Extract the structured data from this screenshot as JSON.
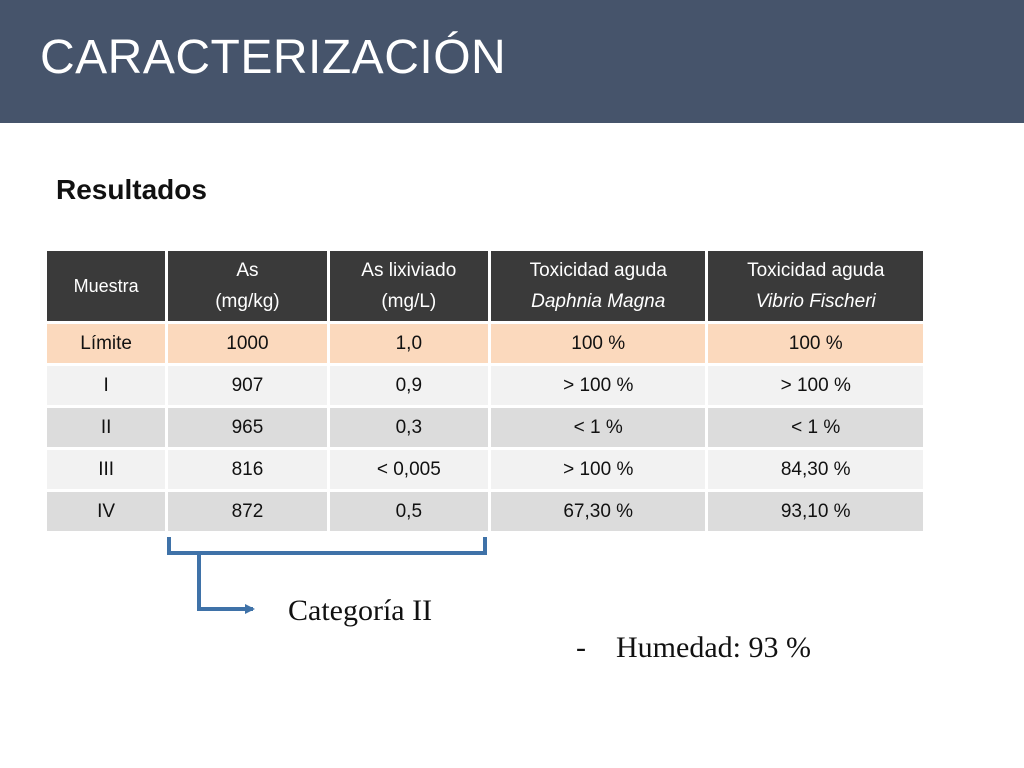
{
  "slide": {
    "title": "CARACTERIZACIÓN",
    "subtitle": "Resultados"
  },
  "table": {
    "headers": [
      {
        "line1": "Muestra",
        "line2": ""
      },
      {
        "line1": "As",
        "line2": "(mg/kg)"
      },
      {
        "line1": "As lixiviado",
        "line2": "(mg/L)"
      },
      {
        "line1": "Toxicidad aguda",
        "line2": "Daphnia Magna"
      },
      {
        "line1": "Toxicidad aguda",
        "line2": "Vibrio Fischeri"
      }
    ],
    "rows": [
      [
        "Límite",
        "1000",
        "1,0",
        "100 %",
        "100 %"
      ],
      [
        "I",
        "907",
        "0,9",
        "> 100 %",
        "> 100 %"
      ],
      [
        "II",
        "965",
        "0,3",
        "< 1 %",
        "< 1 %"
      ],
      [
        "III",
        "816",
        "< 0,005",
        "> 100 %",
        "84,30 %"
      ],
      [
        "IV",
        "872",
        "0,5",
        "67,30 %",
        "93,10 %"
      ]
    ]
  },
  "annotation": {
    "category_label": "Categoría II",
    "bullet_marker": "-",
    "bullet_text": "Humedad: 93 %"
  },
  "colors": {
    "title_bar": "#46546b",
    "header_bg": "#3a3a3a",
    "limit_row": "#fbd9bd",
    "row_light": "#f2f2f2",
    "row_dark": "#dcdcdc",
    "bracket_stroke": "#3f72a8"
  }
}
